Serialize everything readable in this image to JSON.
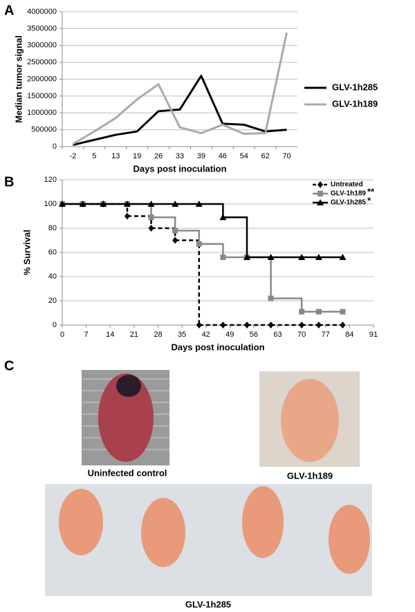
{
  "panel_labels": [
    "A",
    "B",
    "C"
  ],
  "chart_data": [
    {
      "type": "line",
      "y_label": "Median  tumor signal",
      "x_label": "Days post inoculation",
      "categories": [
        -2,
        5,
        13,
        19,
        26,
        33,
        39,
        46,
        54,
        62,
        70
      ],
      "ylim": [
        0,
        4000000
      ],
      "yticks": [
        0,
        500000,
        1000000,
        1500000,
        2000000,
        2500000,
        3000000,
        3500000,
        4000000
      ],
      "grid": true,
      "legend": "right",
      "series": [
        {
          "name": "GLV-1h285",
          "color": "#000000",
          "values": [
            50000,
            200000,
            350000,
            450000,
            1050000,
            1100000,
            2100000,
            680000,
            650000,
            450000,
            500000
          ]
        },
        {
          "name": "GLV-1h189",
          "color": "#aaaaaa",
          "values": [
            80000,
            450000,
            850000,
            1400000,
            1850000,
            570000,
            400000,
            650000,
            380000,
            400000,
            3380000
          ]
        }
      ]
    },
    {
      "type": "line",
      "step": true,
      "y_label": "% Survival",
      "x_label": "Days post inoculation",
      "x": [
        0,
        6,
        12,
        19,
        26,
        33,
        40,
        47,
        54,
        61,
        70,
        75,
        82
      ],
      "xlim": [
        0,
        91
      ],
      "xticks": [
        0,
        7,
        14,
        21,
        28,
        35,
        42,
        49,
        56,
        63,
        70,
        77,
        84,
        91
      ],
      "ylim": [
        0,
        120
      ],
      "yticks": [
        0,
        20,
        40,
        60,
        80,
        100,
        120
      ],
      "grid": true,
      "legend": "upper right",
      "series": [
        {
          "name": "Untreated",
          "color": "#000000",
          "dash": true,
          "marker": "diamond",
          "values": [
            100,
            100,
            100,
            90,
            80,
            70,
            0,
            0,
            0,
            0,
            0,
            0,
            0
          ]
        },
        {
          "name": "GLV-1h189",
          "significance": "**",
          "color": "#888888",
          "marker": "square",
          "values": [
            100,
            100,
            100,
            100,
            89,
            78,
            67,
            56,
            56,
            22,
            11,
            11,
            11
          ]
        },
        {
          "name": "GLV-1h285",
          "significance": "*",
          "color": "#000000",
          "marker": "triangle",
          "values": [
            100,
            100,
            100,
            100,
            100,
            100,
            100,
            89,
            56,
            56,
            56,
            56,
            56
          ]
        }
      ]
    }
  ],
  "photos": {
    "captions": [
      "Uninfected control",
      "GLV-1h189",
      "GLV-1h285"
    ]
  }
}
